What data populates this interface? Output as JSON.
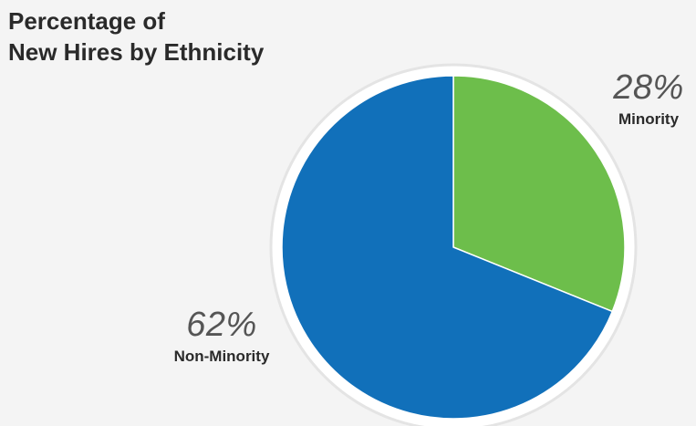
{
  "chart_data": {
    "type": "pie",
    "title_lines": [
      "Percentage of",
      "New Hires by Ethnicity"
    ],
    "slices": [
      {
        "label": "Minority",
        "value": 28,
        "display": "28%",
        "color": "#6dbe4b"
      },
      {
        "label": "Non-Minority",
        "value": 62,
        "display": "62%",
        "color": "#1170ba"
      }
    ],
    "ring_color": "#e4e4e4",
    "slice_border_color": "#ffffff"
  }
}
